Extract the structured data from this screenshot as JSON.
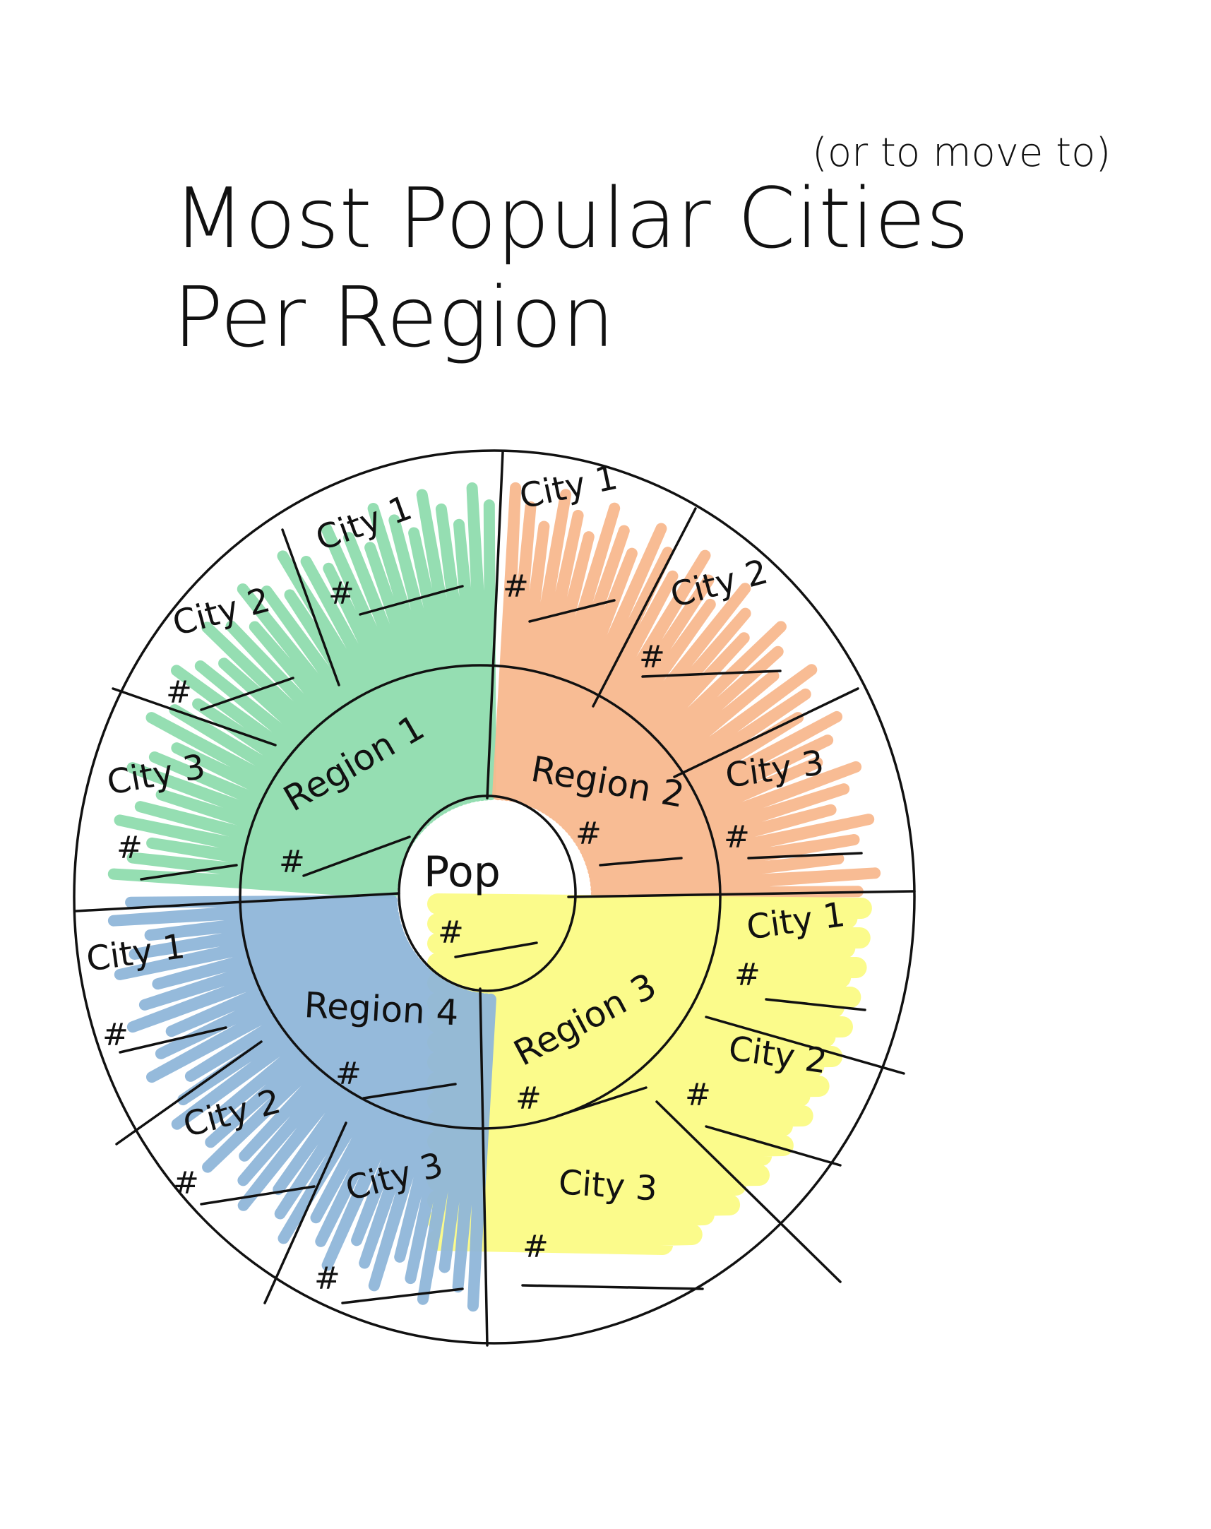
{
  "title": "Most Popular Cities",
  "title_note": "(or to move to)",
  "title_line2": "Per Region",
  "center": {
    "label": "Pop",
    "value_marker": "#"
  },
  "colors": {
    "region_1": "#8fdcae",
    "region_2": "#f8b88e",
    "region_3": "#fbfb85",
    "region_4": "#8fb6d9"
  },
  "regions": [
    {
      "label": "Region 1",
      "value_marker": "#",
      "color_key": "region_1",
      "cities": [
        {
          "label": "City 1",
          "value_marker": "#"
        },
        {
          "label": "City 2",
          "value_marker": "#"
        },
        {
          "label": "City 3",
          "value_marker": "#"
        }
      ]
    },
    {
      "label": "Region 2",
      "value_marker": "#",
      "color_key": "region_2",
      "cities": [
        {
          "label": "City 1",
          "value_marker": "#"
        },
        {
          "label": "City 2",
          "value_marker": "#"
        },
        {
          "label": "City 3",
          "value_marker": "#"
        }
      ]
    },
    {
      "label": "Region 3",
      "value_marker": "#",
      "color_key": "region_3",
      "cities": [
        {
          "label": "City 1",
          "value_marker": "#"
        },
        {
          "label": "City 2",
          "value_marker": "#"
        },
        {
          "label": "City 3",
          "value_marker": "#"
        }
      ]
    },
    {
      "label": "Region 4",
      "value_marker": "#",
      "color_key": "region_4",
      "cities": [
        {
          "label": "City 1",
          "value_marker": "#"
        },
        {
          "label": "City 2",
          "value_marker": "#"
        },
        {
          "label": "City 3",
          "value_marker": "#"
        }
      ]
    }
  ]
}
